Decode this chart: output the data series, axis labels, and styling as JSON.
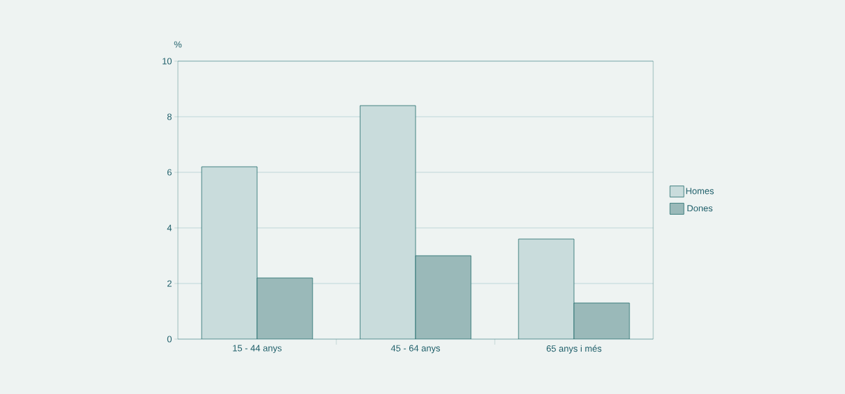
{
  "chart_data": {
    "type": "bar",
    "ylabel": "%",
    "categories": [
      "15 - 44 anys",
      "45 - 64 anys",
      "65 anys i més"
    ],
    "series": [
      {
        "name": "Homes",
        "color": "#c9dcdc",
        "values": [
          6.2,
          8.4,
          3.6
        ]
      },
      {
        "name": "Dones",
        "color": "#9ab9b9",
        "values": [
          2.2,
          3.0,
          1.3
        ]
      }
    ],
    "ylim": [
      0,
      10
    ],
    "yticks": [
      0,
      2,
      4,
      6,
      8,
      10
    ],
    "grid": "y",
    "legend": "right"
  }
}
